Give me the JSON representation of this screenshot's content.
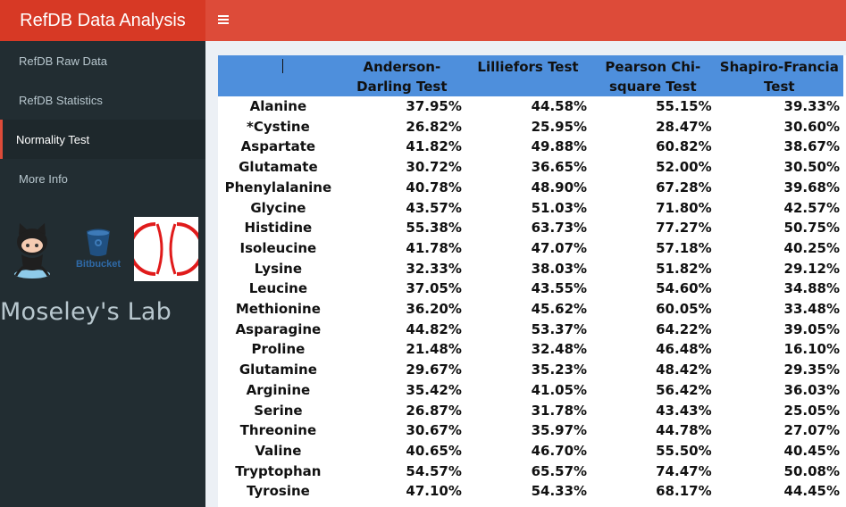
{
  "app": {
    "title": "RefDB Data Analysis"
  },
  "sidebar": {
    "items": [
      {
        "label": "RefDB Raw Data",
        "active": false
      },
      {
        "label": "RefDB Statistics",
        "active": false
      },
      {
        "label": "Normality Test",
        "active": true
      },
      {
        "label": "More Info",
        "active": false
      }
    ],
    "logos": {
      "github": "github-octocat-icon",
      "bitbucket_label": "Bitbucket",
      "lab_logo": "cx-lab-logo"
    },
    "lab_name": "Moseley's Lab"
  },
  "colors": {
    "header_dark": "#d73925",
    "header": "#dd4b39",
    "sidebar_bg": "#222d32",
    "table_header": "#4e8fdc"
  },
  "table": {
    "headers": [
      "",
      "Anderson-Darling Test",
      "Lilliefors Test",
      "Pearson Chi-square Test",
      "Shapiro-Francia Test"
    ],
    "rows": [
      [
        "Alanine",
        "37.95%",
        "44.58%",
        "55.15%",
        "39.33%"
      ],
      [
        "*Cystine",
        "26.82%",
        "25.95%",
        "28.47%",
        "30.60%"
      ],
      [
        "Aspartate",
        "41.82%",
        "49.88%",
        "60.82%",
        "38.67%"
      ],
      [
        "Glutamate",
        "30.72%",
        "36.65%",
        "52.00%",
        "30.50%"
      ],
      [
        "Phenylalanine",
        "40.78%",
        "48.90%",
        "67.28%",
        "39.68%"
      ],
      [
        "Glycine",
        "43.57%",
        "51.03%",
        "71.80%",
        "42.57%"
      ],
      [
        "Histidine",
        "55.38%",
        "63.73%",
        "77.27%",
        "50.75%"
      ],
      [
        "Isoleucine",
        "41.78%",
        "47.07%",
        "57.18%",
        "40.25%"
      ],
      [
        "Lysine",
        "32.33%",
        "38.03%",
        "51.82%",
        "29.12%"
      ],
      [
        "Leucine",
        "37.05%",
        "43.55%",
        "54.60%",
        "34.88%"
      ],
      [
        "Methionine",
        "36.20%",
        "45.62%",
        "60.05%",
        "33.48%"
      ],
      [
        "Asparagine",
        "44.82%",
        "53.37%",
        "64.22%",
        "39.05%"
      ],
      [
        "Proline",
        "21.48%",
        "32.48%",
        "46.48%",
        "16.10%"
      ],
      [
        "Glutamine",
        "29.67%",
        "35.23%",
        "48.42%",
        "29.35%"
      ],
      [
        "Arginine",
        "35.42%",
        "41.05%",
        "56.42%",
        "36.03%"
      ],
      [
        "Serine",
        "26.87%",
        "31.78%",
        "43.43%",
        "25.05%"
      ],
      [
        "Threonine",
        "30.67%",
        "35.97%",
        "44.78%",
        "27.07%"
      ],
      [
        "Valine",
        "40.65%",
        "46.70%",
        "55.50%",
        "40.45%"
      ],
      [
        "Tryptophan",
        "54.57%",
        "65.57%",
        "74.47%",
        "50.08%"
      ],
      [
        "Tyrosine",
        "47.10%",
        "54.33%",
        "68.17%",
        "44.45%"
      ]
    ]
  }
}
